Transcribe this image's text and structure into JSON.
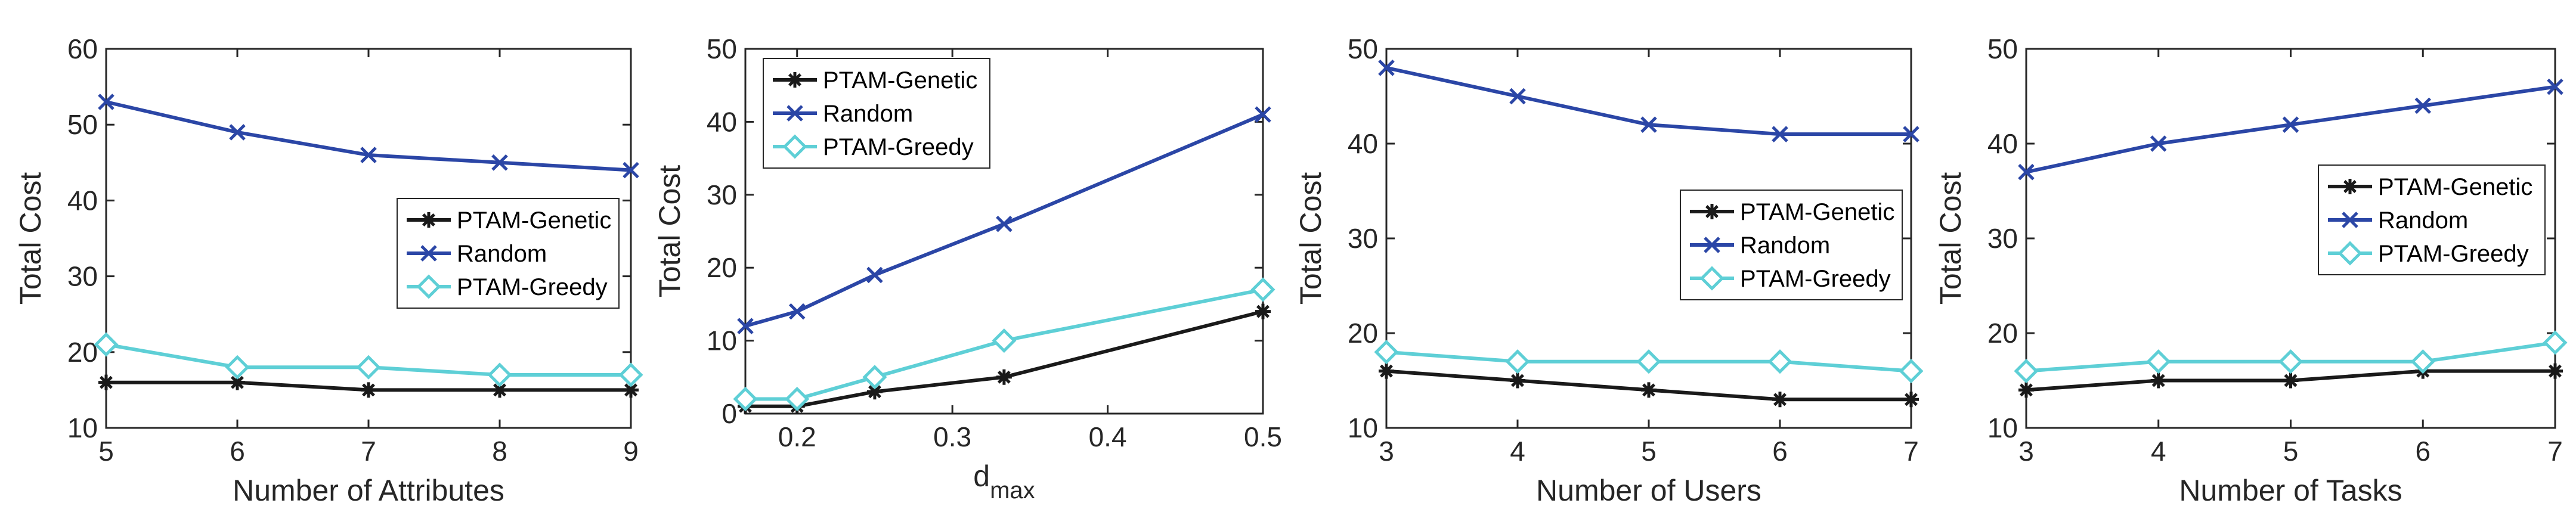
{
  "chart_data": [
    {
      "type": "line",
      "title": "",
      "xlabel": "Number of Attributes",
      "ylabel": "Total Cost",
      "x": [
        5,
        6,
        7,
        8,
        9
      ],
      "xlim": [
        5,
        9
      ],
      "ylim": [
        10,
        60
      ],
      "xticks": [
        "5",
        "6",
        "7",
        "8",
        "9"
      ],
      "yticks": [
        "10",
        "20",
        "30",
        "40",
        "50",
        "60"
      ],
      "legend_position": "center-right",
      "series": [
        {
          "name": "PTAM-Genetic",
          "marker": "asterisk",
          "color": "#1a1a1a",
          "values": [
            16,
            16,
            15,
            15,
            15
          ]
        },
        {
          "name": "Random",
          "marker": "x",
          "color": "#2b46a6",
          "values": [
            53,
            49,
            46,
            45,
            44
          ]
        },
        {
          "name": "PTAM-Greedy",
          "marker": "diamond",
          "color": "#5ecfd6",
          "values": [
            21,
            18,
            18,
            17,
            17
          ]
        }
      ]
    },
    {
      "type": "line",
      "title": "",
      "xlabel": "d",
      "xlabel_sub": "max",
      "ylabel": "Total Cost",
      "x": [
        0.1667,
        0.2,
        0.25,
        0.3333,
        0.5
      ],
      "xlim": [
        0.1667,
        0.5
      ],
      "ylim": [
        0,
        50
      ],
      "xticks": [
        "0.2",
        "0.3",
        "0.4",
        "0.5"
      ],
      "yticks": [
        "0",
        "10",
        "20",
        "30",
        "40",
        "50"
      ],
      "legend_position": "top-left",
      "series": [
        {
          "name": "PTAM-Genetic",
          "marker": "asterisk",
          "color": "#1a1a1a",
          "values": [
            1,
            1,
            3,
            5,
            14
          ]
        },
        {
          "name": "Random",
          "marker": "x",
          "color": "#2b46a6",
          "values": [
            12,
            14,
            19,
            26,
            41
          ]
        },
        {
          "name": "PTAM-Greedy",
          "marker": "diamond",
          "color": "#5ecfd6",
          "values": [
            2,
            2,
            5,
            10,
            17
          ]
        }
      ]
    },
    {
      "type": "line",
      "title": "",
      "xlabel": "Number of Users",
      "ylabel": "Total Cost",
      "x": [
        3,
        4,
        5,
        6,
        7
      ],
      "xlim": [
        3,
        7
      ],
      "ylim": [
        10,
        50
      ],
      "xticks": [
        "3",
        "4",
        "5",
        "6",
        "7"
      ],
      "yticks": [
        "10",
        "20",
        "30",
        "40",
        "50"
      ],
      "legend_position": "center-right",
      "series": [
        {
          "name": "PTAM-Genetic",
          "marker": "asterisk",
          "color": "#1a1a1a",
          "values": [
            16,
            15,
            14,
            13,
            13
          ]
        },
        {
          "name": "Random",
          "marker": "x",
          "color": "#2b46a6",
          "values": [
            48,
            45,
            42,
            41,
            41
          ]
        },
        {
          "name": "PTAM-Greedy",
          "marker": "diamond",
          "color": "#5ecfd6",
          "values": [
            18,
            17,
            17,
            17,
            16
          ]
        }
      ]
    },
    {
      "type": "line",
      "title": "",
      "xlabel": "Number of Tasks",
      "ylabel": "Total Cost",
      "x": [
        3,
        4,
        5,
        6,
        7
      ],
      "xlim": [
        3,
        7
      ],
      "ylim": [
        10,
        50
      ],
      "xticks": [
        "3",
        "4",
        "5",
        "6",
        "7"
      ],
      "yticks": [
        "10",
        "20",
        "30",
        "40",
        "50"
      ],
      "legend_position": "center-right",
      "series": [
        {
          "name": "PTAM-Genetic",
          "marker": "asterisk",
          "color": "#1a1a1a",
          "values": [
            14,
            15,
            15,
            16,
            16
          ]
        },
        {
          "name": "Random",
          "marker": "x",
          "color": "#2b46a6",
          "values": [
            37,
            40,
            42,
            44,
            46
          ]
        },
        {
          "name": "PTAM-Greedy",
          "marker": "diamond",
          "color": "#5ecfd6",
          "values": [
            16,
            17,
            17,
            17,
            19
          ]
        }
      ]
    }
  ]
}
